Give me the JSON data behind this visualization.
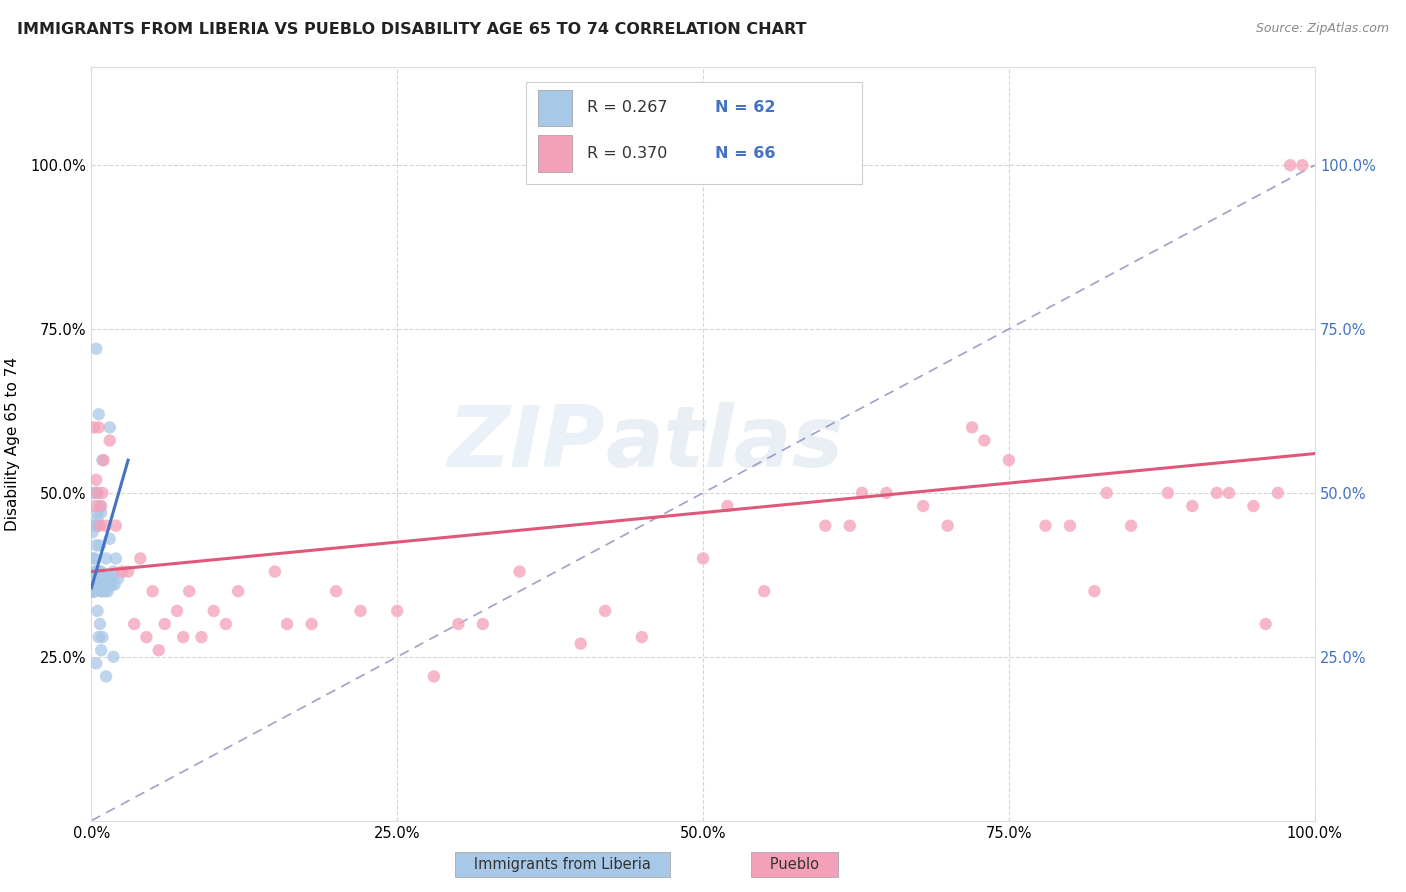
{
  "title": "IMMIGRANTS FROM LIBERIA VS PUEBLO DISABILITY AGE 65 TO 74 CORRELATION CHART",
  "source": "Source: ZipAtlas.com",
  "ylabel": "Disability Age 65 to 74",
  "legend_label1": "Immigrants from Liberia",
  "legend_label2": "Pueblo",
  "legend_R1": "R = 0.267",
  "legend_N1": "N = 62",
  "legend_R2": "R = 0.370",
  "legend_N2": "N = 66",
  "color_blue": "#a8c8e8",
  "color_pink": "#f4a0b8",
  "color_blue_text": "#4472c4",
  "color_line_blue": "#4472c4",
  "color_line_pink": "#e05878",
  "color_line_dashed": "#8888bb",
  "watermark_zip": "ZIP",
  "watermark_atlas": "atlas",
  "blue_x": [
    0.3,
    0.8,
    0.5,
    1.2,
    0.4,
    0.2,
    0.6,
    0.7,
    0.9,
    1.0,
    0.1,
    0.15,
    0.25,
    0.35,
    0.45,
    0.55,
    0.65,
    0.75,
    0.85,
    0.95,
    1.1,
    1.3,
    1.5,
    1.8,
    2.0,
    0.05,
    0.08,
    0.12,
    0.18,
    0.22,
    0.28,
    0.32,
    0.38,
    0.42,
    0.48,
    0.52,
    0.58,
    0.62,
    0.68,
    0.72,
    0.78,
    0.82,
    0.88,
    0.92,
    0.98,
    1.05,
    1.15,
    1.25,
    1.35,
    1.45,
    1.55,
    1.65,
    1.75,
    1.9,
    2.2,
    0.03,
    0.06,
    0.09,
    0.16,
    0.19,
    0.23,
    0.27
  ],
  "blue_y": [
    38,
    38,
    47,
    40,
    42,
    50,
    38,
    42,
    37,
    37,
    44,
    40,
    40,
    38,
    38,
    37,
    36,
    37,
    36,
    37,
    36,
    37,
    43,
    38,
    40,
    36,
    35,
    37,
    36,
    36,
    35,
    36,
    36,
    38,
    36,
    38,
    36,
    37,
    36,
    36,
    36,
    35,
    35,
    36,
    36,
    36,
    35,
    36,
    35,
    36,
    36,
    36,
    37,
    36,
    37,
    35,
    35,
    35,
    35,
    35,
    35,
    36
  ],
  "blue_y_outliers": [
    72,
    62,
    60,
    55,
    50,
    50,
    48,
    47,
    46,
    45,
    45,
    45,
    25,
    22,
    30,
    28,
    32,
    24,
    26,
    28
  ],
  "blue_x_outliers": [
    0.4,
    0.6,
    1.5,
    0.9,
    0.5,
    0.3,
    0.7,
    0.8,
    0.5,
    0.4,
    0.35,
    0.45,
    1.8,
    1.2,
    0.7,
    0.6,
    0.5,
    0.4,
    0.8,
    0.9
  ],
  "pink_x": [
    0.2,
    0.4,
    0.6,
    0.8,
    1.0,
    1.5,
    2.0,
    3.0,
    4.0,
    5.0,
    6.0,
    7.0,
    8.0,
    9.0,
    10.0,
    12.0,
    15.0,
    18.0,
    20.0,
    25.0,
    28.0,
    30.0,
    35.0,
    40.0,
    45.0,
    50.0,
    55.0,
    60.0,
    62.0,
    65.0,
    68.0,
    70.0,
    72.0,
    75.0,
    78.0,
    80.0,
    82.0,
    85.0,
    88.0,
    90.0,
    92.0,
    95.0,
    97.0,
    98.0,
    0.3,
    0.5,
    0.7,
    0.9,
    1.2,
    2.5,
    3.5,
    4.5,
    5.5,
    7.5,
    11.0,
    16.0,
    22.0,
    32.0,
    42.0,
    52.0,
    63.0,
    73.0,
    83.0,
    93.0,
    96.0,
    99.0
  ],
  "pink_y": [
    60,
    52,
    60,
    48,
    55,
    58,
    45,
    38,
    40,
    35,
    30,
    32,
    35,
    28,
    32,
    35,
    38,
    30,
    35,
    32,
    22,
    30,
    38,
    27,
    28,
    40,
    35,
    45,
    45,
    50,
    48,
    45,
    60,
    55,
    45,
    45,
    35,
    45,
    50,
    48,
    50,
    48,
    50,
    100,
    48,
    50,
    45,
    50,
    45,
    38,
    30,
    28,
    26,
    28,
    30,
    30,
    32,
    30,
    32,
    48,
    50,
    58,
    50,
    50,
    30,
    100
  ],
  "xlim": [
    0,
    100
  ],
  "ylim": [
    0,
    115
  ],
  "ytick_positions": [
    0,
    25,
    50,
    75,
    100
  ],
  "xtick_positions": [
    0,
    25,
    50,
    75,
    100
  ],
  "blue_line_x": [
    0,
    3.0
  ],
  "blue_line_y": [
    35.5,
    55.0
  ],
  "pink_line_x": [
    0,
    100
  ],
  "pink_line_y": [
    38.0,
    56.0
  ],
  "diag_line_x": [
    0,
    100
  ],
  "diag_line_y": [
    0,
    100
  ]
}
